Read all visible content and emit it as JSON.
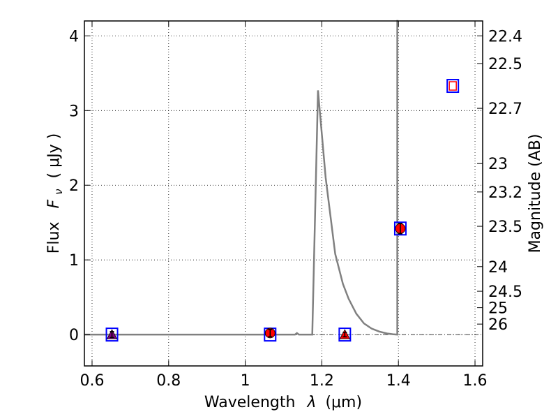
{
  "chart_data": {
    "type": "line",
    "xlabel_plain": "Wavelength",
    "xlabel_sym": "λ",
    "xlabel_unit": "(μm)",
    "ylabel_plain": "Flux",
    "ylabel_F": "F",
    "ylabel_sub": "ν",
    "ylabel_unit": "( μJy )",
    "y2label": "Magnitude (AB)",
    "xlim": [
      0.58,
      1.62
    ],
    "ylim": [
      -0.42,
      4.2
    ],
    "grid": true,
    "x_ticks": [
      0.6,
      0.8,
      1.0,
      1.2,
      1.4,
      1.6
    ],
    "x_tick_labels": [
      "0.6",
      "0.8",
      "1",
      "1.2",
      "1.4",
      "1.6"
    ],
    "y_ticks": [
      0,
      1,
      2,
      3,
      4
    ],
    "y_tick_labels": [
      "0",
      "1",
      "2",
      "3",
      "4"
    ],
    "y2_ticks": [
      {
        "flux": 4.0,
        "label": "22.4"
      },
      {
        "flux": 3.63,
        "label": "22.5"
      },
      {
        "flux": 3.03,
        "label": "22.7"
      },
      {
        "flux": 2.29,
        "label": "23"
      },
      {
        "flux": 1.91,
        "label": "23.2"
      },
      {
        "flux": 1.45,
        "label": "23.5"
      },
      {
        "flux": 0.91,
        "label": "24"
      },
      {
        "flux": 0.58,
        "label": "24.5"
      },
      {
        "flux": 0.36,
        "label": "25"
      },
      {
        "flux": 0.14,
        "label": "26"
      }
    ],
    "series": [
      {
        "color": "#808080",
        "x": [
          0.58,
          1.13,
          1.135,
          1.14,
          1.175,
          1.19,
          1.21,
          1.235,
          1.255,
          1.27,
          1.29,
          1.31,
          1.33,
          1.35,
          1.37,
          1.385,
          1.397,
          1.397,
          1.4
        ],
        "y": [
          0.0,
          0.0,
          0.02,
          0.0,
          0.0,
          3.27,
          2.1,
          1.08,
          0.68,
          0.48,
          0.28,
          0.15,
          0.08,
          0.04,
          0.015,
          0.005,
          0.0,
          4.2,
          4.2
        ]
      }
    ],
    "model_points": [
      {
        "x": 0.652,
        "y": 0.0
      },
      {
        "x": 1.065,
        "y": 0.0
      },
      {
        "x": 1.26,
        "y": 0.0
      },
      {
        "x": 1.405,
        "y": 1.42
      },
      {
        "x": 1.542,
        "y": 3.33
      }
    ],
    "observed_points": [
      {
        "x": 0.652,
        "y": 0.0,
        "err": 0.04,
        "marker": "triangle",
        "color": "#800080"
      },
      {
        "x": 1.065,
        "y": 0.02,
        "err": 0.05,
        "marker": "circle",
        "color": "#ff0000"
      },
      {
        "x": 1.26,
        "y": 0.0,
        "err": 0.03,
        "marker": "triangle",
        "color": "#ff0000"
      },
      {
        "x": 1.405,
        "y": 1.42,
        "err": 0.07,
        "marker": "circle",
        "color": "#ff0000"
      }
    ],
    "upper_limit_points": [
      {
        "x": 1.542,
        "y": 3.33
      }
    ],
    "zero_line": {
      "y": 0,
      "style": "dash-dot",
      "color": "#000000"
    }
  }
}
